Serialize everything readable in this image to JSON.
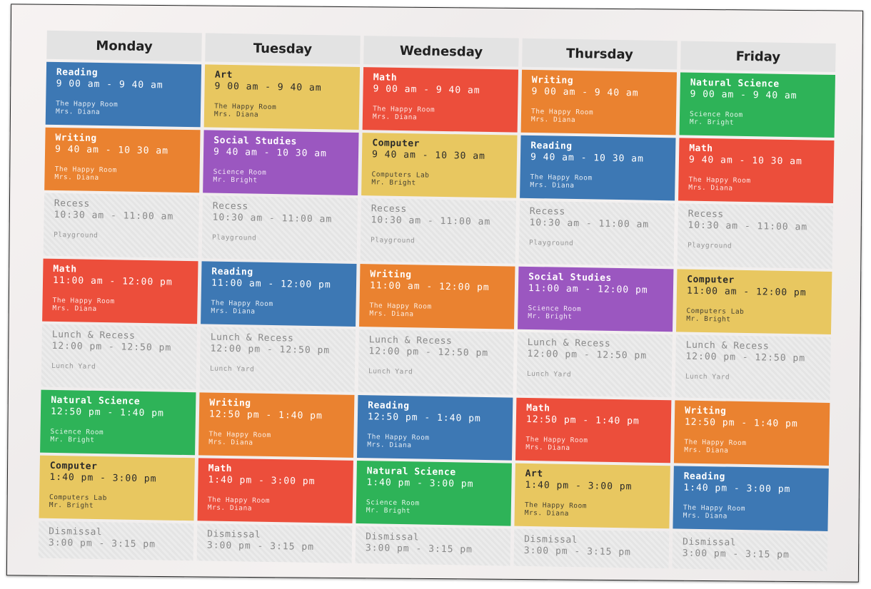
{
  "colors": {
    "Reading": "#3d78b4",
    "Writing": "#ea8230",
    "Math": "#ec4e3b",
    "Art": "#e8c760",
    "Computer": "#e8c760",
    "Social Studies": "#9b57c0",
    "Natural Science": "#2eb358",
    "break": "#e8e8e8"
  },
  "days": [
    {
      "name": "Monday",
      "slots": [
        {
          "subject": "Reading",
          "time": "9 00 am - 9 40 am",
          "room": "The Happy Room",
          "teacher": "Mrs. Diana",
          "color": "blue"
        },
        {
          "subject": "Writing",
          "time": "9 40 am - 10 30 am",
          "room": "The Happy Room",
          "teacher": "Mrs. Diana",
          "color": "orange"
        },
        {
          "subject": "Recess",
          "time": "10:30 am - 11:00 am",
          "room": "Playground",
          "teacher": "",
          "color": "break"
        },
        {
          "subject": "Math",
          "time": "11:00 am - 12:00 pm",
          "room": "The Happy Room",
          "teacher": "Mrs. Diana",
          "color": "red"
        },
        {
          "subject": "Lunch & Recess",
          "time": "12:00 pm - 12:50 pm",
          "room": "Lunch Yard",
          "teacher": "",
          "color": "break"
        },
        {
          "subject": "Natural Science",
          "time": "12:50 pm - 1:40 pm",
          "room": "Science Room",
          "teacher": "Mr. Bright",
          "color": "green"
        },
        {
          "subject": "Computer",
          "time": "1:40 pm - 3:00 pm",
          "room": "Computers Lab",
          "teacher": "Mr. Bright",
          "color": "yellow"
        },
        {
          "subject": "Dismissal",
          "time": "3:00 pm - 3:15 pm",
          "room": "",
          "teacher": "",
          "color": "break"
        }
      ]
    },
    {
      "name": "Tuesday",
      "slots": [
        {
          "subject": "Art",
          "time": "9 00 am - 9 40 am",
          "room": "The Happy Room",
          "teacher": "Mrs. Diana",
          "color": "yellow"
        },
        {
          "subject": "Social Studies",
          "time": "9 40 am - 10 30 am",
          "room": "Science Room",
          "teacher": "Mr. Bright",
          "color": "purple"
        },
        {
          "subject": "Recess",
          "time": "10:30 am - 11:00 am",
          "room": "Playground",
          "teacher": "",
          "color": "break"
        },
        {
          "subject": "Reading",
          "time": "11:00 am - 12:00 pm",
          "room": "The Happy Room",
          "teacher": "Mrs. Diana",
          "color": "blue"
        },
        {
          "subject": "Lunch & Recess",
          "time": "12:00 pm - 12:50 pm",
          "room": "Lunch Yard",
          "teacher": "",
          "color": "break"
        },
        {
          "subject": "Writing",
          "time": "12:50 pm - 1:40 pm",
          "room": "The Happy Room",
          "teacher": "Mrs. Diana",
          "color": "orange"
        },
        {
          "subject": "Math",
          "time": "1:40 pm - 3:00 pm",
          "room": "The Happy Room",
          "teacher": "Mrs. Diana",
          "color": "red"
        },
        {
          "subject": "Dismissal",
          "time": "3:00 pm - 3:15 pm",
          "room": "",
          "teacher": "",
          "color": "break"
        }
      ]
    },
    {
      "name": "Wednesday",
      "slots": [
        {
          "subject": "Math",
          "time": "9 00 am - 9 40 am",
          "room": "The Happy Room",
          "teacher": "Mrs. Diana",
          "color": "red"
        },
        {
          "subject": "Computer",
          "time": "9 40 am - 10 30 am",
          "room": "Computers Lab",
          "teacher": "Mr. Bright",
          "color": "yellow"
        },
        {
          "subject": "Recess",
          "time": "10:30 am - 11:00 am",
          "room": "Playground",
          "teacher": "",
          "color": "break"
        },
        {
          "subject": "Writing",
          "time": "11:00 am - 12:00 pm",
          "room": "The Happy Room",
          "teacher": "Mrs. Diana",
          "color": "orange"
        },
        {
          "subject": "Lunch & Recess",
          "time": "12:00 pm - 12:50 pm",
          "room": "Lunch Yard",
          "teacher": "",
          "color": "break"
        },
        {
          "subject": "Reading",
          "time": "12:50 pm - 1:40 pm",
          "room": "The Happy Room",
          "teacher": "Mrs. Diana",
          "color": "blue"
        },
        {
          "subject": "Natural Science",
          "time": "1:40 pm - 3:00 pm",
          "room": "Science Room",
          "teacher": "Mr. Bright",
          "color": "green"
        },
        {
          "subject": "Dismissal",
          "time": "3:00 pm - 3:15 pm",
          "room": "",
          "teacher": "",
          "color": "break"
        }
      ]
    },
    {
      "name": "Thursday",
      "slots": [
        {
          "subject": "Writing",
          "time": "9 00 am - 9 40 am",
          "room": "The Happy Room",
          "teacher": "Mrs. Diana",
          "color": "orange"
        },
        {
          "subject": "Reading",
          "time": "9 40 am - 10 30 am",
          "room": "The Happy Room",
          "teacher": "Mrs. Diana",
          "color": "blue"
        },
        {
          "subject": "Recess",
          "time": "10:30 am - 11:00 am",
          "room": "Playground",
          "teacher": "",
          "color": "break"
        },
        {
          "subject": "Social Studies",
          "time": "11:00 am - 12:00 pm",
          "room": "Science Room",
          "teacher": "Mr. Bright",
          "color": "purple"
        },
        {
          "subject": "Lunch & Recess",
          "time": "12:00 pm - 12:50 pm",
          "room": "Lunch Yard",
          "teacher": "",
          "color": "break"
        },
        {
          "subject": "Math",
          "time": "12:50 pm - 1:40 pm",
          "room": "The Happy Room",
          "teacher": "Mrs. Diana",
          "color": "red"
        },
        {
          "subject": "Art",
          "time": "1:40 pm - 3:00 pm",
          "room": "The Happy Room",
          "teacher": "Mrs. Diana",
          "color": "yellow"
        },
        {
          "subject": "Dismissal",
          "time": "3:00 pm - 3:15 pm",
          "room": "",
          "teacher": "",
          "color": "break"
        }
      ]
    },
    {
      "name": "Friday",
      "slots": [
        {
          "subject": "Natural Science",
          "time": "9 00 am - 9 40 am",
          "room": "Science Room",
          "teacher": "Mr. Bright",
          "color": "green"
        },
        {
          "subject": "Math",
          "time": "9 40 am - 10 30 am",
          "room": "The Happy Room",
          "teacher": "Mrs. Diana",
          "color": "red"
        },
        {
          "subject": "Recess",
          "time": "10:30 am - 11:00 am",
          "room": "Playground",
          "teacher": "",
          "color": "break"
        },
        {
          "subject": "Computer",
          "time": "11:00 am - 12:00 pm",
          "room": "Computers Lab",
          "teacher": "Mr. Bright",
          "color": "yellow"
        },
        {
          "subject": "Lunch & Recess",
          "time": "12:00 pm - 12:50 pm",
          "room": "Lunch Yard",
          "teacher": "",
          "color": "break"
        },
        {
          "subject": "Writing",
          "time": "12:50 pm - 1:40 pm",
          "room": "The Happy Room",
          "teacher": "Mrs. Diana",
          "color": "orange"
        },
        {
          "subject": "Reading",
          "time": "1:40 pm - 3:00 pm",
          "room": "The Happy Room",
          "teacher": "Mrs. Diana",
          "color": "blue"
        },
        {
          "subject": "Dismissal",
          "time": "3:00 pm - 3:15 pm",
          "room": "",
          "teacher": "",
          "color": "break"
        }
      ]
    }
  ]
}
